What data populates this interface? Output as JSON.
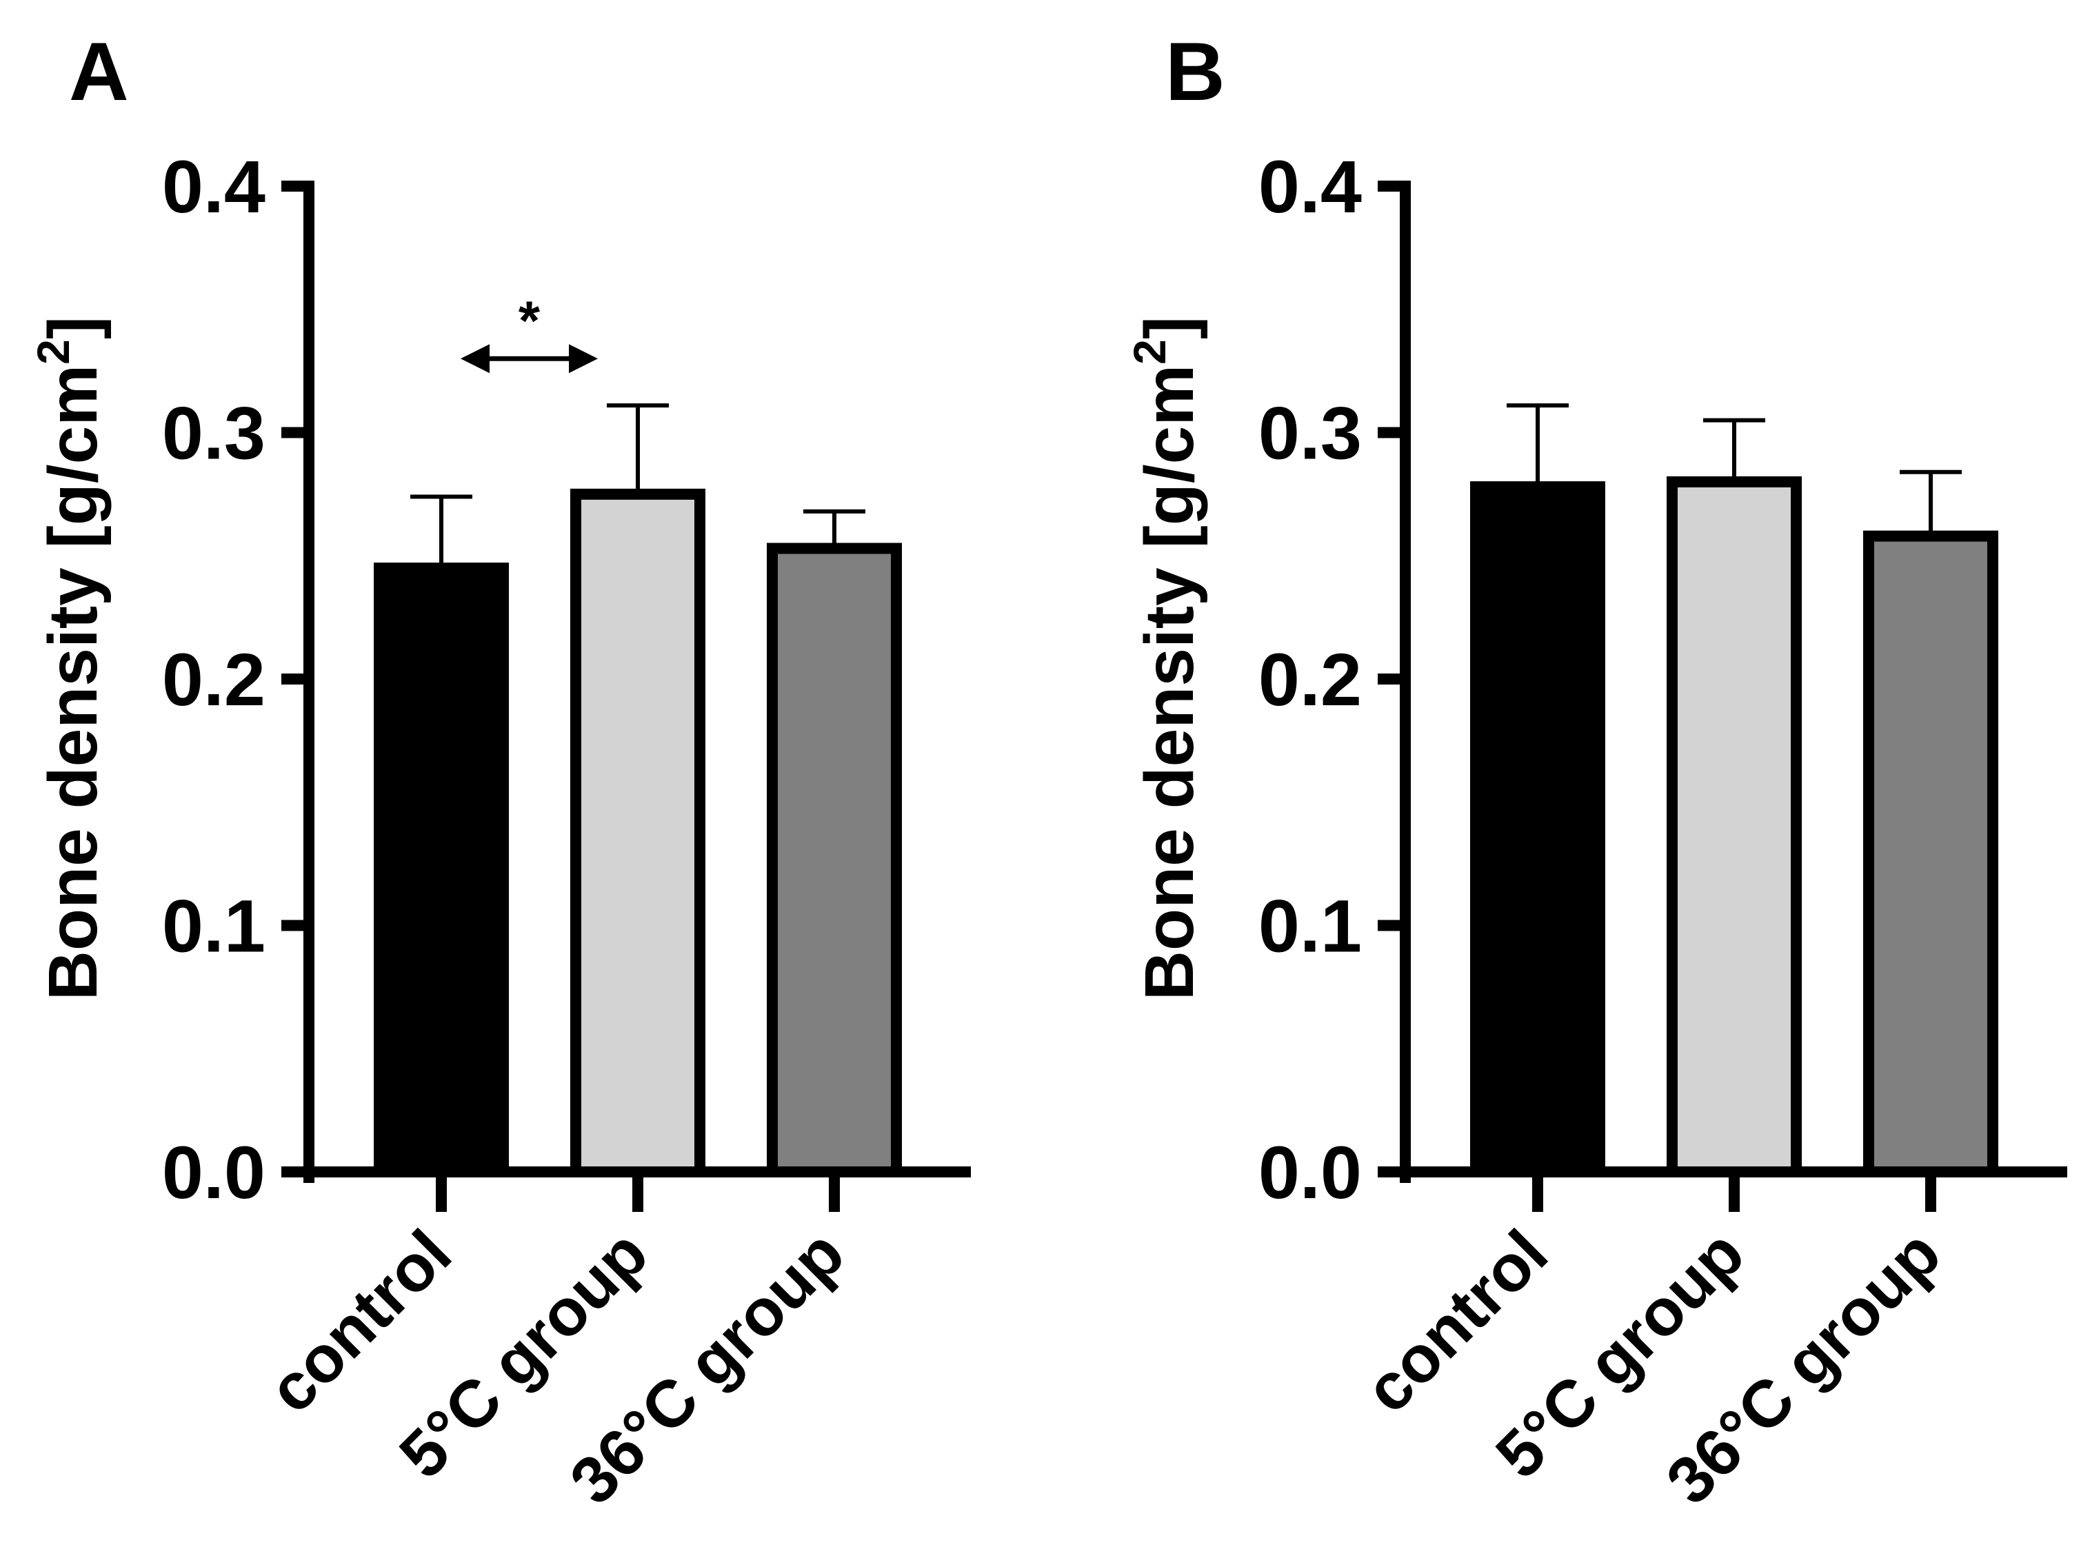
{
  "chart_data": [
    {
      "panel": "A",
      "type": "bar",
      "categories": [
        "control",
        "5°C group",
        "36°C group"
      ],
      "values": [
        0.245,
        0.275,
        0.253
      ],
      "errors": [
        0.029,
        0.036,
        0.015
      ],
      "fills": [
        "#000000",
        "#d3d3d3",
        "#808080"
      ],
      "ylabel": "Bone density [g/cm",
      "ylabel_sup": "2",
      "ylabel_close": "]",
      "ylim": [
        0,
        0.4
      ],
      "yticks": [
        0.0,
        0.1,
        0.2,
        0.3,
        0.4
      ],
      "ytick_labels": [
        "0.0",
        "0.1",
        "0.2",
        "0.3",
        "0.4"
      ],
      "annotation": {
        "text": "*",
        "from": 0,
        "to": 1,
        "y": 0.33
      }
    },
    {
      "panel": "B",
      "type": "bar",
      "categories": [
        "control",
        "5°C group",
        "36°C group"
      ],
      "values": [
        0.278,
        0.28,
        0.258
      ],
      "errors": [
        0.033,
        0.025,
        0.026
      ],
      "fills": [
        "#000000",
        "#d3d3d3",
        "#808080"
      ],
      "ylabel": "Bone density [g/cm",
      "ylabel_sup": "2",
      "ylabel_close": "]",
      "ylim": [
        0,
        0.4
      ],
      "yticks": [
        0.0,
        0.1,
        0.2,
        0.3,
        0.4
      ],
      "ytick_labels": [
        "0.0",
        "0.1",
        "0.2",
        "0.3",
        "0.4"
      ]
    }
  ]
}
